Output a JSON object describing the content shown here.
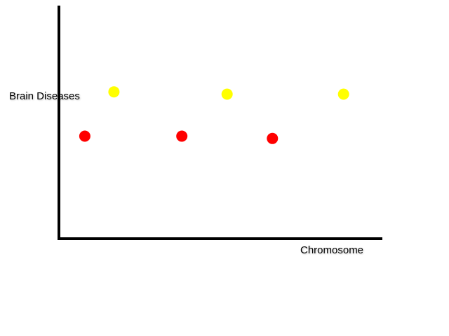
{
  "chart_data": {
    "type": "scatter",
    "title": "",
    "xlabel": "Chromosome",
    "ylabel": "Brain Diseases",
    "grid": false,
    "legend": "none",
    "series": [
      {
        "color": "#ffff00",
        "points": [
          [
            0.17,
            0.63
          ],
          [
            0.52,
            0.62
          ],
          [
            0.88,
            0.62
          ]
        ]
      },
      {
        "color": "#ff0000",
        "points": [
          [
            0.08,
            0.44
          ],
          [
            0.38,
            0.44
          ],
          [
            0.66,
            0.43
          ]
        ]
      }
    ]
  }
}
